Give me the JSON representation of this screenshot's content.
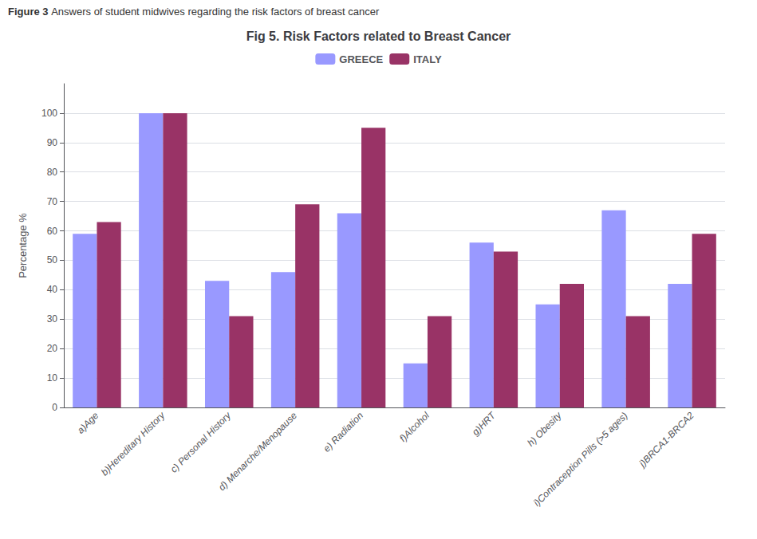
{
  "chart_data": {
    "type": "bar",
    "title": "Fig 5. Risk Factors related to Breast Cancer",
    "annotations": [
      "Figure 3",
      "Answers of student midwives regarding the risk factors of breast cancer"
    ],
    "ylabel": "Percentage %",
    "categories": [
      "a)Age",
      "b)Hereditary History",
      "c) Personal History",
      "d) Menarche/Menopause",
      "e) Radiation",
      "f)Alcohol",
      "g)HRT",
      "h) Obesity",
      "i)Contraception Pills (>5 ages)",
      "j)BRCA1-BRCA2"
    ],
    "series": [
      {
        "name": "GREECE",
        "color": "#9999FF",
        "values": [
          59,
          100,
          43,
          46,
          66,
          15,
          56,
          35,
          67,
          42
        ]
      },
      {
        "name": "ITALY",
        "color": "#993366",
        "values": [
          63,
          100,
          31,
          69,
          95,
          31,
          53,
          42,
          31,
          59
        ]
      }
    ],
    "ylim": [
      0,
      110
    ],
    "yticks": [
      0,
      10,
      20,
      30,
      40,
      50,
      60,
      70,
      80,
      90,
      100
    ],
    "grid": true,
    "legend": "top"
  }
}
